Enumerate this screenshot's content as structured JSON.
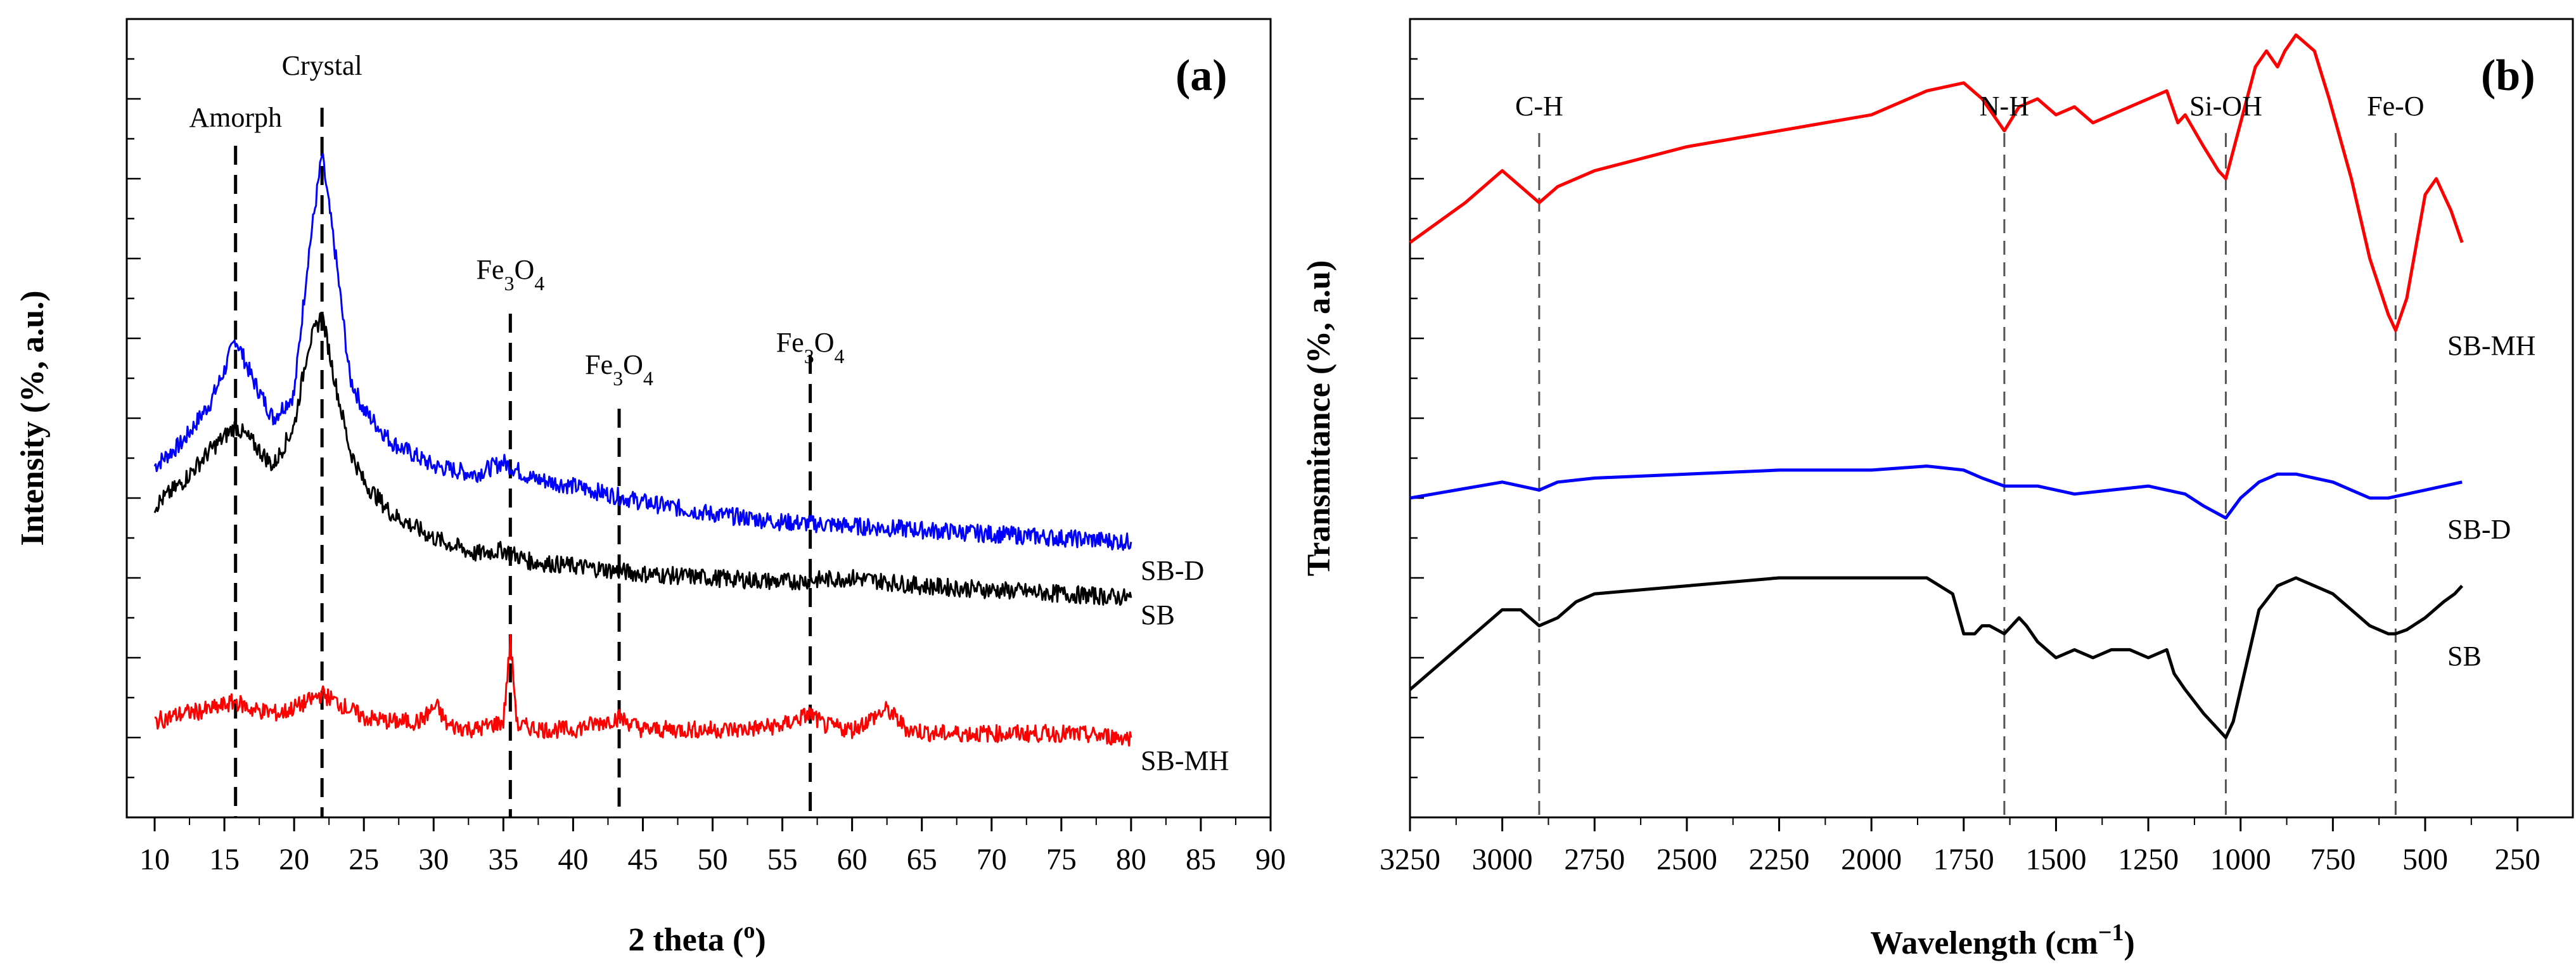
{
  "chart_data": [
    {
      "id": "a",
      "type": "line",
      "panel_label": "(a)",
      "xlabel": "2 theta (°)",
      "ylabel": "Intensity (%, a.u.)",
      "xlim": [
        8,
        90
      ],
      "ylim": [
        0,
        100
      ],
      "xticks": [
        10,
        15,
        20,
        25,
        30,
        35,
        40,
        45,
        50,
        55,
        60,
        65,
        70,
        75,
        80,
        85,
        90
      ],
      "xtick_labels": [
        "10",
        "15",
        "20",
        "25",
        "30",
        "35",
        "40",
        "45",
        "50",
        "55",
        "60",
        "65",
        "70",
        "75",
        "80",
        "85",
        "90"
      ],
      "annotations": [
        {
          "x": 15.8,
          "label": "Amorph",
          "sub": ""
        },
        {
          "x": 22.0,
          "label": "Crystal",
          "sub": ""
        },
        {
          "x": 35.5,
          "label": "Fe3O4",
          "sub": ""
        },
        {
          "x": 43.3,
          "label": "Fe3O4",
          "sub": ""
        },
        {
          "x": 57.0,
          "label": "Fe3O4",
          "sub": ""
        }
      ],
      "series": [
        {
          "name": "SB-D",
          "label": "SB-D",
          "color": "#0000ff",
          "x": [
            10,
            12,
            14,
            15,
            15.8,
            17,
            18.5,
            20,
            21,
            22,
            23,
            24,
            25,
            27,
            30,
            33,
            35,
            37,
            40,
            45,
            50,
            55,
            60,
            65,
            70,
            75,
            80
          ],
          "y": [
            44,
            47,
            52,
            56,
            60,
            55,
            50,
            53,
            70,
            83,
            70,
            55,
            51,
            47,
            44,
            43,
            44.5,
            42.5,
            41.5,
            39.5,
            38,
            37,
            36.5,
            36,
            35.5,
            35,
            34.5
          ]
        },
        {
          "name": "SB",
          "label": "SB",
          "color": "#000000",
          "x": [
            10,
            12,
            14,
            15.8,
            17,
            18.5,
            20,
            21,
            22,
            23,
            24,
            25,
            27,
            30,
            33,
            35,
            37,
            40,
            45,
            50,
            55,
            60,
            65,
            70,
            75,
            80
          ],
          "y": [
            39,
            42,
            46,
            49,
            47,
            44,
            49,
            59,
            63,
            54,
            46,
            42,
            38,
            35,
            33,
            33.5,
            32,
            31.5,
            30.5,
            30,
            29.5,
            30,
            29,
            28.5,
            28,
            27.5
          ]
        },
        {
          "name": "SB-MH",
          "label": "SB-MH",
          "color": "#ff0000",
          "x": [
            10,
            12,
            14,
            15.8,
            17,
            19,
            21,
            22,
            23,
            25,
            27,
            29,
            30.2,
            31,
            33,
            35,
            35.5,
            36,
            38,
            40,
            43.3,
            45,
            48,
            52,
            55,
            57,
            58,
            60,
            62.5,
            64,
            66,
            70,
            75,
            80
          ],
          "y": [
            12,
            13,
            13.5,
            14.5,
            13.5,
            13,
            14.5,
            15.5,
            14.5,
            12.5,
            12,
            12,
            14,
            11.5,
            11,
            12,
            22,
            11.5,
            11,
            11,
            12.5,
            11,
            11,
            11,
            11.5,
            13,
            11.5,
            11,
            13.5,
            11,
            10.5,
            10.5,
            10.5,
            10
          ]
        }
      ]
    },
    {
      "id": "b",
      "type": "line",
      "panel_label": "(b)",
      "xlabel": "Wavelength (cm⁻¹)",
      "ylabel": "Transmitance (%, a.u)",
      "xlim": [
        3250,
        100
      ],
      "ylim": [
        0,
        100
      ],
      "x_inverted": true,
      "xticks": [
        3250,
        3000,
        2750,
        2500,
        2250,
        2000,
        1750,
        1500,
        1250,
        1000,
        750,
        500,
        250
      ],
      "xtick_labels": [
        "3250",
        "3000",
        "2750",
        "2500",
        "2250",
        "2000",
        "1750",
        "1500",
        "1250",
        "1000",
        "750",
        "500",
        "250"
      ],
      "annotations": [
        {
          "x": 2900,
          "label": "C-H"
        },
        {
          "x": 1640,
          "label": "N-H"
        },
        {
          "x": 1040,
          "label": "Si-OH"
        },
        {
          "x": 580,
          "label": "Fe-O"
        }
      ],
      "series": [
        {
          "name": "SB-MH",
          "label": "SB-MH",
          "color": "#ff0000",
          "x": [
            3250,
            3100,
            3000,
            2950,
            2900,
            2850,
            2750,
            2500,
            2250,
            2000,
            1850,
            1750,
            1700,
            1640,
            1600,
            1550,
            1500,
            1450,
            1400,
            1350,
            1300,
            1250,
            1200,
            1170,
            1150,
            1100,
            1060,
            1040,
            1000,
            960,
            930,
            900,
            880,
            850,
            800,
            760,
            700,
            650,
            600,
            580,
            550,
            500,
            470,
            430,
            400
          ],
          "y": [
            72,
            77,
            81,
            79,
            77,
            79,
            81,
            84,
            86,
            88,
            91,
            92,
            90,
            86,
            89,
            90,
            88,
            89,
            87,
            88,
            89,
            90,
            91,
            87,
            88,
            84,
            81,
            80,
            87,
            94,
            96,
            94,
            96,
            98,
            96,
            90,
            80,
            70,
            63,
            61,
            65,
            78,
            80,
            76,
            72
          ]
        },
        {
          "name": "SB-D",
          "label": "SB-D",
          "color": "#0000ff",
          "x": [
            3250,
            3000,
            2900,
            2850,
            2750,
            2500,
            2250,
            2000,
            1850,
            1750,
            1700,
            1640,
            1550,
            1450,
            1350,
            1250,
            1200,
            1150,
            1100,
            1040,
            1000,
            950,
            900,
            850,
            800,
            750,
            700,
            650,
            600,
            550,
            500,
            450,
            400
          ],
          "y": [
            40,
            42,
            41,
            42,
            42.5,
            43,
            43.5,
            43.5,
            44,
            43.5,
            42.5,
            41.5,
            41.5,
            40.5,
            41,
            41.5,
            41,
            40.5,
            39,
            37.5,
            40,
            42,
            43,
            43,
            42.5,
            42,
            41,
            40,
            40,
            40.5,
            41,
            41.5,
            42
          ]
        },
        {
          "name": "SB",
          "label": "SB",
          "color": "#000000",
          "x": [
            3250,
            3150,
            3050,
            3000,
            2950,
            2900,
            2850,
            2800,
            2750,
            2500,
            2250,
            2000,
            1850,
            1780,
            1750,
            1720,
            1700,
            1680,
            1640,
            1600,
            1580,
            1550,
            1500,
            1450,
            1400,
            1350,
            1300,
            1250,
            1200,
            1180,
            1150,
            1100,
            1060,
            1040,
            1020,
            980,
            950,
            900,
            850,
            800,
            750,
            700,
            650,
            600,
            580,
            550,
            500,
            450,
            420,
            400
          ],
          "y": [
            16,
            20,
            24,
            26,
            26,
            24,
            25,
            27,
            28,
            29,
            30,
            30,
            30,
            28,
            23,
            23,
            24,
            24,
            23,
            25,
            24,
            22,
            20,
            21,
            20,
            21,
            21,
            20,
            21,
            18,
            16,
            13,
            11,
            10,
            12,
            20,
            26,
            29,
            30,
            29,
            28,
            26,
            24,
            23,
            23,
            23.5,
            25,
            27,
            28,
            29
          ]
        }
      ]
    }
  ]
}
